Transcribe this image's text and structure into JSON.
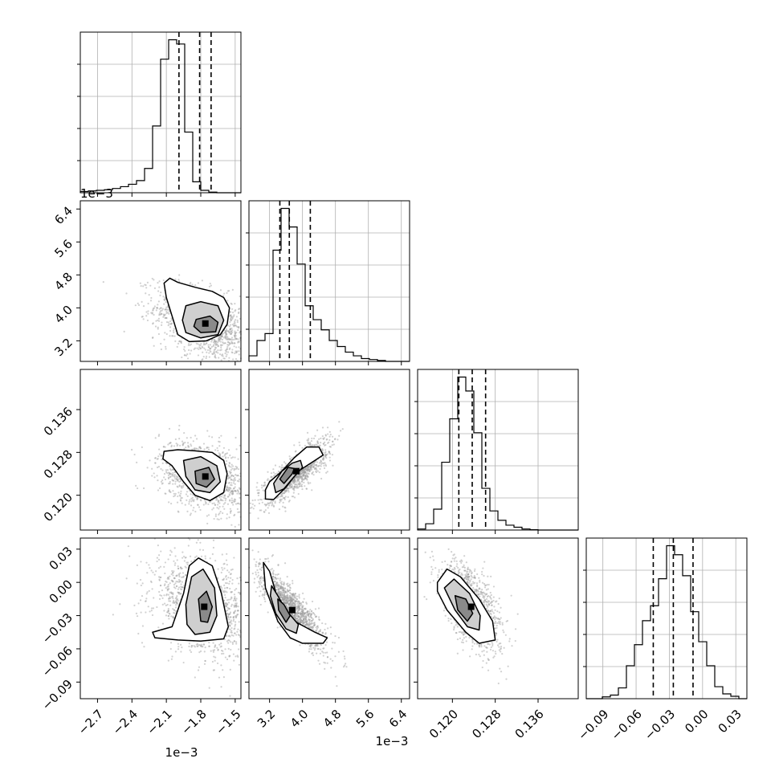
{
  "chart_data": {
    "type": "corner",
    "exponent_label": "1e−3",
    "parameters": [
      {
        "range": [
          -2.85,
          -1.45
        ],
        "ticks": [
          -2.7,
          -2.4,
          -2.1,
          -1.8,
          -1.5
        ],
        "tick_labels": [
          "−2.7",
          "−2.4",
          "−2.1",
          "−1.8",
          "−1.5"
        ],
        "exponent": true,
        "quantiles": [
          -1.99,
          -1.81,
          -1.71
        ],
        "hist": {
          "edges_start": -2.85,
          "bin_width": 0.07,
          "counts": [
            2,
            3,
            4,
            5,
            7,
            10,
            14,
            20,
            40,
            110,
            220,
            252,
            245,
            100,
            18,
            4,
            1,
            0,
            0,
            0
          ]
        }
      },
      {
        "range": [
          2.7,
          6.6
        ],
        "ticks": [
          3.2,
          4.0,
          4.8,
          5.6,
          6.4
        ],
        "tick_labels": [
          "3.2",
          "4.0",
          "4.8",
          "5.6",
          "6.4"
        ],
        "exponent": true,
        "quantiles": [
          3.45,
          3.68,
          4.19
        ],
        "hist": {
          "edges_start": 2.7,
          "bin_width": 0.195,
          "counts": [
            12,
            45,
            60,
            240,
            330,
            290,
            210,
            120,
            90,
            68,
            45,
            32,
            20,
            12,
            6,
            4,
            2,
            0,
            0,
            0
          ]
        }
      },
      {
        "range": [
          0.1135,
          0.1435
        ],
        "ticks": [
          0.12,
          0.128,
          0.136
        ],
        "tick_labels": [
          "0.120",
          "0.128",
          "0.136"
        ],
        "exponent": false,
        "quantiles": [
          0.1212,
          0.1237,
          0.1262
        ],
        "hist": {
          "edges_start": 0.1135,
          "bin_width": 0.0015,
          "counts": [
            3,
            18,
            60,
            195,
            320,
            440,
            400,
            280,
            120,
            55,
            28,
            14,
            8,
            3,
            1,
            0,
            0,
            0,
            0,
            0
          ]
        }
      },
      {
        "range": [
          -0.105,
          0.04
        ],
        "ticks": [
          -0.09,
          -0.06,
          -0.03,
          0.0,
          0.03
        ],
        "tick_labels": [
          "−0.09",
          "−0.06",
          "−0.03",
          "0.00",
          "0.03"
        ],
        "exponent": false,
        "quantiles": [
          -0.0445,
          -0.0264,
          -0.0086
        ],
        "hist": {
          "edges_start": -0.105,
          "bin_width": 0.00725,
          "counts": [
            0,
            0,
            3,
            6,
            18,
            55,
            90,
            130,
            155,
            200,
            255,
            240,
            205,
            145,
            95,
            55,
            20,
            8,
            4,
            0
          ]
        }
      }
    ],
    "pairs": [
      {
        "x": 0,
        "y": 1,
        "center": [
          -1.76,
          3.62
        ],
        "sd": [
          0.22,
          0.45
        ],
        "corr": -0.45,
        "n": 1400,
        "contours": [
          [
            [
              -2.07,
              4.72
            ],
            [
              -2.0,
              4.62
            ],
            [
              -1.85,
              4.5
            ],
            [
              -1.7,
              4.4
            ],
            [
              -1.6,
              4.25
            ],
            [
              -1.55,
              4.0
            ],
            [
              -1.57,
              3.6
            ],
            [
              -1.63,
              3.35
            ],
            [
              -1.75,
              3.2
            ],
            [
              -1.9,
              3.18
            ],
            [
              -2.0,
              3.35
            ],
            [
              -2.05,
              3.8
            ],
            [
              -2.1,
              4.25
            ],
            [
              -2.12,
              4.6
            ]
          ],
          [
            [
              -1.93,
              4.05
            ],
            [
              -1.8,
              4.15
            ],
            [
              -1.65,
              4.05
            ],
            [
              -1.6,
              3.7
            ],
            [
              -1.65,
              3.35
            ],
            [
              -1.8,
              3.27
            ],
            [
              -1.93,
              3.4
            ],
            [
              -1.96,
              3.7
            ]
          ],
          [
            [
              -1.84,
              3.72
            ],
            [
              -1.72,
              3.8
            ],
            [
              -1.65,
              3.65
            ],
            [
              -1.67,
              3.42
            ],
            [
              -1.8,
              3.4
            ],
            [
              -1.86,
              3.55
            ]
          ]
        ]
      },
      {
        "x": 0,
        "y": 2,
        "center": [
          -1.76,
          0.1235
        ],
        "sd": [
          0.2,
          0.0032
        ],
        "corr": -0.35,
        "n": 1400,
        "contours": [
          [
            [
              -2.12,
              0.1282
            ],
            [
              -2.0,
              0.1285
            ],
            [
              -1.85,
              0.1283
            ],
            [
              -1.7,
              0.128
            ],
            [
              -1.6,
              0.1265
            ],
            [
              -1.57,
              0.124
            ],
            [
              -1.6,
              0.1205
            ],
            [
              -1.72,
              0.119
            ],
            [
              -1.85,
              0.12
            ],
            [
              -1.95,
              0.1225
            ],
            [
              -2.05,
              0.1255
            ],
            [
              -2.13,
              0.1268
            ]
          ],
          [
            [
              -1.95,
              0.1265
            ],
            [
              -1.8,
              0.1272
            ],
            [
              -1.66,
              0.1255
            ],
            [
              -1.63,
              0.1225
            ],
            [
              -1.72,
              0.1205
            ],
            [
              -1.85,
              0.121
            ],
            [
              -1.93,
              0.1235
            ]
          ],
          [
            [
              -1.85,
              0.1245
            ],
            [
              -1.73,
              0.1252
            ],
            [
              -1.68,
              0.123
            ],
            [
              -1.75,
              0.1215
            ],
            [
              -1.84,
              0.1222
            ]
          ]
        ]
      },
      {
        "x": 0,
        "y": 3,
        "center": [
          -1.77,
          -0.022
        ],
        "sd": [
          0.22,
          0.022
        ],
        "corr": -0.3,
        "n": 1400,
        "contours": [
          [
            [
              -2.22,
              -0.045
            ],
            [
              -2.05,
              -0.04
            ],
            [
              -1.95,
              -0.01
            ],
            [
              -1.9,
              0.015
            ],
            [
              -1.82,
              0.022
            ],
            [
              -1.7,
              0.015
            ],
            [
              -1.62,
              -0.01
            ],
            [
              -1.56,
              -0.04
            ],
            [
              -1.6,
              -0.051
            ],
            [
              -1.8,
              -0.053
            ],
            [
              -2.0,
              -0.052
            ],
            [
              -2.2,
              -0.05
            ]
          ],
          [
            [
              -1.93,
              -0.02
            ],
            [
              -1.88,
              0.005
            ],
            [
              -1.78,
              0.012
            ],
            [
              -1.68,
              -0.005
            ],
            [
              -1.66,
              -0.03
            ],
            [
              -1.72,
              -0.045
            ],
            [
              -1.85,
              -0.047
            ],
            [
              -1.92,
              -0.038
            ]
          ],
          [
            [
              -1.82,
              -0.015
            ],
            [
              -1.75,
              -0.008
            ],
            [
              -1.7,
              -0.022
            ],
            [
              -1.74,
              -0.036
            ],
            [
              -1.8,
              -0.035
            ]
          ]
        ]
      },
      {
        "x": 1,
        "y": 2,
        "center": [
          3.85,
          0.1245
        ],
        "sd": [
          0.38,
          0.0028
        ],
        "corr": 0.8,
        "n": 1400,
        "contours": [
          [
            [
              3.1,
              0.121
            ],
            [
              3.1,
              0.1193
            ],
            [
              3.3,
              0.1192
            ],
            [
              3.6,
              0.1215
            ],
            [
              3.9,
              0.1245
            ],
            [
              4.3,
              0.1265
            ],
            [
              4.5,
              0.1275
            ],
            [
              4.4,
              0.129
            ],
            [
              4.1,
              0.129
            ],
            [
              3.8,
              0.127
            ],
            [
              3.5,
              0.1245
            ],
            [
              3.2,
              0.1225
            ]
          ],
          [
            [
              3.3,
              0.1222
            ],
            [
              3.35,
              0.1205
            ],
            [
              3.55,
              0.1212
            ],
            [
              3.8,
              0.1235
            ],
            [
              4.0,
              0.1252
            ],
            [
              3.95,
              0.1265
            ],
            [
              3.75,
              0.126
            ],
            [
              3.5,
              0.1245
            ]
          ],
          [
            [
              3.45,
              0.123
            ],
            [
              3.55,
              0.1222
            ],
            [
              3.75,
              0.124
            ],
            [
              3.8,
              0.125
            ],
            [
              3.65,
              0.1252
            ]
          ]
        ]
      },
      {
        "x": 1,
        "y": 3,
        "center": [
          3.75,
          -0.025
        ],
        "sd": [
          0.4,
          0.018
        ],
        "corr": -0.85,
        "n": 1400,
        "contours": [
          [
            [
              3.05,
              0.018
            ],
            [
              3.2,
              0.01
            ],
            [
              3.4,
              -0.015
            ],
            [
              3.8,
              -0.035
            ],
            [
              4.3,
              -0.045
            ],
            [
              4.6,
              -0.05
            ],
            [
              4.5,
              -0.055
            ],
            [
              4.0,
              -0.055
            ],
            [
              3.7,
              -0.05
            ],
            [
              3.4,
              -0.035
            ],
            [
              3.1,
              -0.005
            ]
          ],
          [
            [
              3.25,
              -0.003
            ],
            [
              3.4,
              -0.012
            ],
            [
              3.6,
              -0.025
            ],
            [
              3.9,
              -0.038
            ],
            [
              3.85,
              -0.046
            ],
            [
              3.6,
              -0.042
            ],
            [
              3.35,
              -0.028
            ],
            [
              3.22,
              -0.012
            ]
          ],
          [
            [
              3.4,
              -0.015
            ],
            [
              3.55,
              -0.02
            ],
            [
              3.7,
              -0.03
            ],
            [
              3.6,
              -0.036
            ],
            [
              3.42,
              -0.025
            ]
          ]
        ]
      },
      {
        "x": 2,
        "y": 3,
        "center": [
          0.1235,
          -0.022
        ],
        "sd": [
          0.0027,
          0.019
        ],
        "corr": -0.55,
        "n": 1400,
        "contours": [
          [
            [
              0.1172,
              0.0
            ],
            [
              0.119,
              0.012
            ],
            [
              0.1215,
              0.005
            ],
            [
              0.125,
              -0.015
            ],
            [
              0.1275,
              -0.035
            ],
            [
              0.128,
              -0.052
            ],
            [
              0.125,
              -0.055
            ],
            [
              0.1225,
              -0.045
            ],
            [
              0.119,
              -0.025
            ],
            [
              0.1172,
              -0.008
            ]
          ],
          [
            [
              0.1185,
              -0.005
            ],
            [
              0.1203,
              0.003
            ],
            [
              0.1232,
              -0.01
            ],
            [
              0.1252,
              -0.03
            ],
            [
              0.125,
              -0.043
            ],
            [
              0.1228,
              -0.04
            ],
            [
              0.1205,
              -0.025
            ]
          ],
          [
            [
              0.1205,
              -0.012
            ],
            [
              0.1225,
              -0.015
            ],
            [
              0.1238,
              -0.028
            ],
            [
              0.1228,
              -0.035
            ],
            [
              0.121,
              -0.025
            ]
          ]
        ]
      }
    ]
  }
}
